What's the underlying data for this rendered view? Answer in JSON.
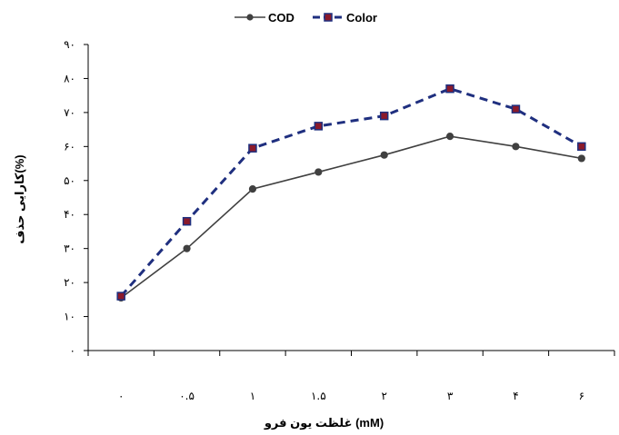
{
  "chart_data": {
    "type": "line",
    "categories": [
      "۰",
      "۰.۵",
      "۱",
      "۱.۵",
      "۲",
      "۳",
      "۴",
      "۶"
    ],
    "series": [
      {
        "name": "COD",
        "color": "#404040",
        "marker": "circle",
        "line_style": "solid",
        "values": [
          15.5,
          30,
          47.5,
          52.5,
          57.5,
          63,
          60,
          56.5
        ]
      },
      {
        "name": "Color",
        "color": "#1f2f7f",
        "marker_fill": "#8b1a2b",
        "marker": "square",
        "line_style": "dashed",
        "values": [
          16,
          38,
          59.5,
          66,
          69,
          77,
          71,
          60
        ]
      }
    ],
    "ylim": [
      0,
      90
    ],
    "yticks": [
      0,
      10,
      20,
      30,
      40,
      50,
      60,
      70,
      80,
      90
    ],
    "ytick_labels": [
      "۰",
      "۱۰",
      "۲۰",
      "۳۰",
      "۴۰",
      "۵۰",
      "۶۰",
      "۷۰",
      "۸۰",
      "۹۰"
    ],
    "xlabel": "غلظت یون فرو (mM)",
    "ylabel": "کارایی حذف(%)",
    "legend_position": "top",
    "grid": false
  }
}
